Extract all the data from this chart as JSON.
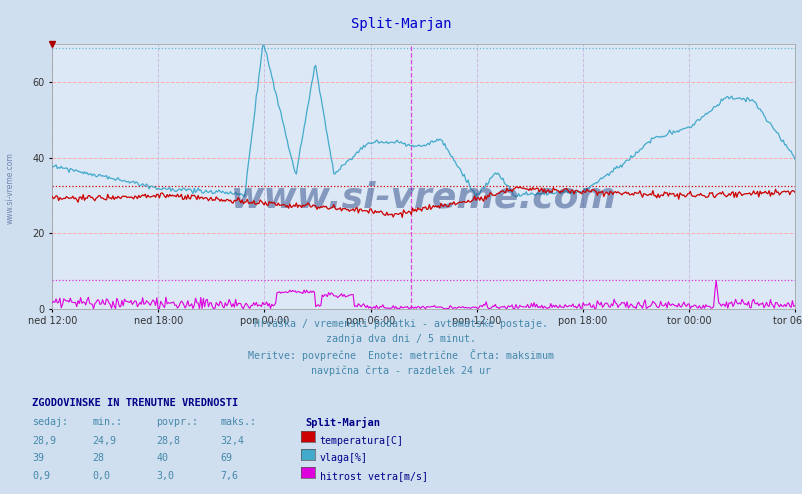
{
  "title": "Split-Marjan",
  "title_color": "#0000cc",
  "bg_color": "#d0dff0",
  "plot_bg_color": "#dce8f5",
  "fig_size": [
    8.03,
    4.94
  ],
  "dpi": 100,
  "ylim": [
    0,
    70
  ],
  "yticks": [
    0,
    20,
    40,
    60
  ],
  "xlabel_ticks": [
    "ned 12:00",
    "ned 18:00",
    "pon 00:00",
    "pon 06:00",
    "pon 12:00",
    "pon 18:00",
    "tor 00:00",
    "tor 06:00"
  ],
  "n_points": 576,
  "temp_color": "#cc0000",
  "humidity_color": "#44aacc",
  "wind_color": "#dd00dd",
  "hgrid_color": "#ffaaaa",
  "vgrid_color": "#ccbbdd",
  "vline_color": "#dd44dd",
  "temp_max": 32.4,
  "hum_max": 69,
  "wind_max": 7.6,
  "subtitle_lines": [
    "Hrvaška / vremenski podatki - avtomatske postaje.",
    "zadnja dva dni / 5 minut.",
    "Meritve: povprečne  Enote: metrične  Črta: maksimum",
    "navpična črta - razdelek 24 ur"
  ],
  "subtitle_color": "#4488aa",
  "legend_title": "Split-Marjan",
  "legend_title_color": "#000088",
  "legend_items": [
    "temperatura[C]",
    "vlaga[%]",
    "hitrost vetra[m/s]"
  ],
  "legend_colors": [
    "#cc0000",
    "#44aacc",
    "#dd00dd"
  ],
  "stats_header": "ZGODOVINSKE IN TRENUTNE VREDNOSTI",
  "stats_header_color": "#000088",
  "stats_cols": [
    "sedaj:",
    "min.:",
    "povpr.:",
    "maks.:"
  ],
  "stats_temp": [
    "28,9",
    "24,9",
    "28,8",
    "32,4"
  ],
  "stats_hum": [
    "39",
    "28",
    "40",
    "69"
  ],
  "stats_wind": [
    "0,9",
    "0,0",
    "3,0",
    "7,6"
  ],
  "watermark": "www.si-vreme.com",
  "watermark_color": "#1a3a7a"
}
